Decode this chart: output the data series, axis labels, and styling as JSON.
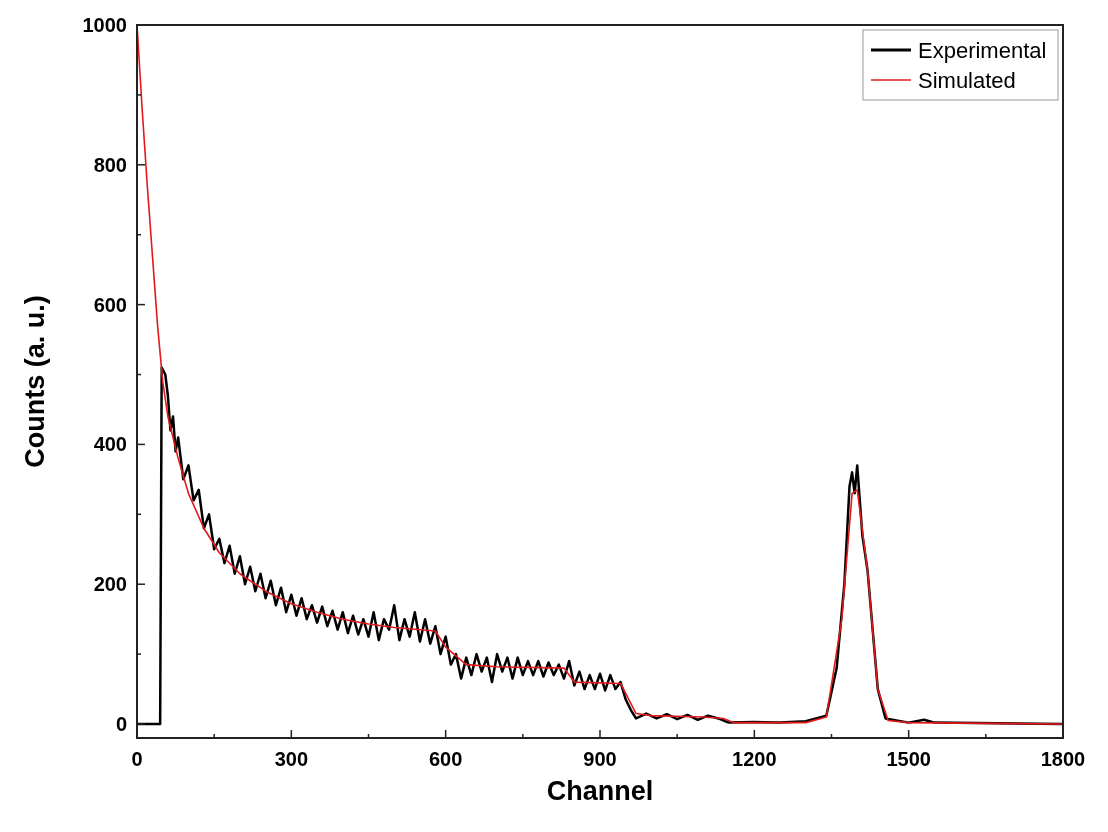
{
  "chart_data": {
    "type": "line",
    "xlabel": "Channel",
    "ylabel": "Counts (a. u.)",
    "xlim": [
      0,
      1800
    ],
    "ylim": [
      -20,
      1000
    ],
    "xticks": [
      0,
      300,
      600,
      900,
      1200,
      1500,
      1800
    ],
    "yticks": [
      0,
      200,
      400,
      600,
      800,
      1000
    ],
    "legend": "top right",
    "grid": false,
    "line_style": "solid",
    "series": [
      {
        "name": "Experimental",
        "color": "#000000",
        "x": [
          0,
          45,
          48,
          55,
          60,
          65,
          70,
          75,
          80,
          90,
          100,
          110,
          120,
          130,
          140,
          150,
          160,
          170,
          180,
          190,
          200,
          210,
          220,
          230,
          240,
          250,
          260,
          270,
          280,
          290,
          300,
          310,
          320,
          330,
          340,
          350,
          360,
          370,
          380,
          390,
          400,
          410,
          420,
          430,
          440,
          450,
          460,
          470,
          480,
          490,
          500,
          510,
          520,
          530,
          540,
          550,
          560,
          570,
          580,
          590,
          600,
          610,
          620,
          630,
          640,
          650,
          660,
          670,
          680,
          690,
          700,
          710,
          720,
          730,
          740,
          750,
          760,
          770,
          780,
          790,
          800,
          810,
          820,
          830,
          840,
          850,
          860,
          870,
          880,
          890,
          900,
          910,
          920,
          930,
          940,
          950,
          960,
          970,
          990,
          1010,
          1030,
          1050,
          1070,
          1090,
          1110,
          1130,
          1150,
          1200,
          1250,
          1300,
          1340,
          1360,
          1375,
          1385,
          1390,
          1395,
          1400,
          1405,
          1410,
          1420,
          1440,
          1455,
          1500,
          1530,
          1550,
          1800
        ],
        "values": [
          0,
          0,
          510,
          500,
          470,
          420,
          440,
          390,
          410,
          350,
          370,
          320,
          335,
          280,
          300,
          250,
          265,
          230,
          255,
          215,
          240,
          200,
          225,
          190,
          215,
          180,
          205,
          170,
          195,
          160,
          185,
          155,
          180,
          150,
          170,
          145,
          168,
          140,
          162,
          135,
          160,
          130,
          155,
          128,
          150,
          125,
          160,
          120,
          150,
          135,
          170,
          120,
          150,
          125,
          160,
          118,
          150,
          115,
          140,
          100,
          125,
          85,
          100,
          65,
          95,
          70,
          100,
          75,
          95,
          60,
          100,
          75,
          95,
          65,
          95,
          70,
          90,
          70,
          90,
          68,
          88,
          70,
          85,
          65,
          90,
          55,
          75,
          50,
          70,
          50,
          72,
          48,
          70,
          50,
          60,
          35,
          20,
          8,
          15,
          8,
          14,
          7,
          13,
          6,
          12,
          8,
          2,
          3,
          2,
          4,
          12,
          80,
          200,
          340,
          360,
          330,
          370,
          320,
          270,
          220,
          50,
          8,
          2,
          6,
          2,
          0
        ]
      },
      {
        "name": "Simulated",
        "color": "#e31a1c",
        "x": [
          0,
          10,
          20,
          30,
          40,
          50,
          60,
          80,
          100,
          130,
          160,
          200,
          250,
          300,
          350,
          400,
          450,
          500,
          580,
          600,
          640,
          700,
          830,
          850,
          940,
          970,
          1000,
          1100,
          1140,
          1160,
          1300,
          1340,
          1370,
          1390,
          1400,
          1420,
          1440,
          1460,
          1500,
          1800
        ],
        "values": [
          1000,
          880,
          770,
          670,
          570,
          490,
          440,
          380,
          330,
          280,
          245,
          215,
          190,
          172,
          160,
          150,
          143,
          138,
          133,
          110,
          85,
          82,
          80,
          60,
          58,
          15,
          12,
          10,
          8,
          2,
          2,
          10,
          150,
          330,
          335,
          220,
          50,
          5,
          2,
          0
        ]
      }
    ]
  }
}
